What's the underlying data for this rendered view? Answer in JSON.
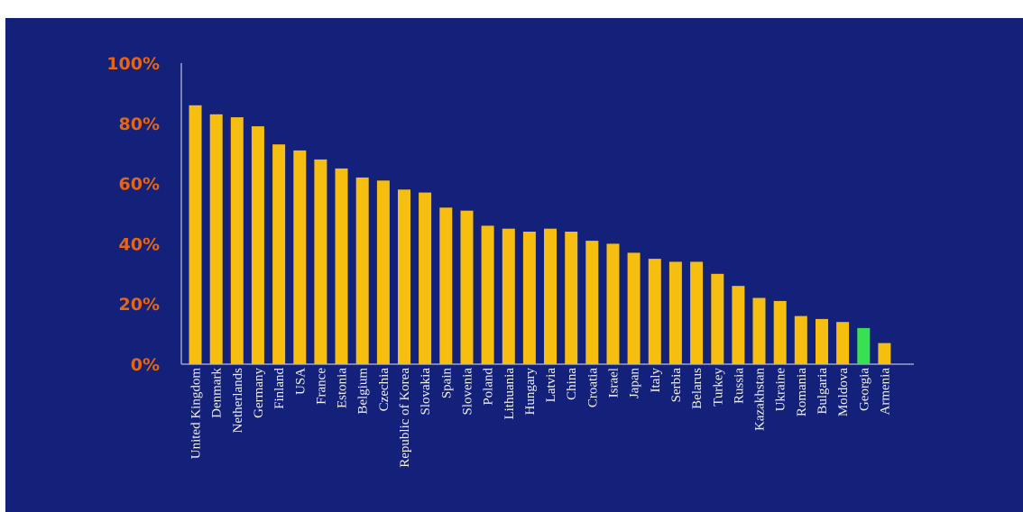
{
  "colors": {
    "background": "#13217a",
    "bar": "#f5be10",
    "highlight_bar": "#3ae054",
    "highlight_label": "#3ae054",
    "ytick": "#e8650c",
    "xtick": "#f2f2f2",
    "axis": "#9aa3c8"
  },
  "chart_data": {
    "type": "bar",
    "title": "",
    "xlabel": "",
    "ylabel": "",
    "ylim": [
      0,
      100
    ],
    "yticks": [
      "0%",
      "20%",
      "40%",
      "60%",
      "80%",
      "100%"
    ],
    "grid": false,
    "legend": "none",
    "highlight": "Georgia",
    "categories": [
      "United Kingdom",
      "Denmark",
      "Netherlands",
      "Germany",
      "Finland",
      "USA",
      "France",
      "Estonia",
      "Belgium",
      "Czechia",
      "Republic of Korea",
      "Slovakia",
      "Spain",
      "Slovenia",
      "Poland",
      "Lithuania",
      "Hungary",
      "Latvia",
      "China",
      "Croatia",
      "Israel",
      "Japan",
      "Italy",
      "Serbia",
      "Belarus",
      "Turkey",
      "Russia",
      "Kazakhstan",
      "Ukraine",
      "Romania",
      "Bulgaria",
      "Moldova",
      "Georgia",
      "Armenia"
    ],
    "values": [
      86,
      83,
      82,
      79,
      73,
      71,
      68,
      65,
      62,
      61,
      58,
      57,
      52,
      51,
      46,
      45,
      44,
      45,
      44,
      41,
      40,
      37,
      35,
      34,
      34,
      30,
      26,
      22,
      21,
      16,
      15,
      14,
      12,
      7
    ]
  }
}
